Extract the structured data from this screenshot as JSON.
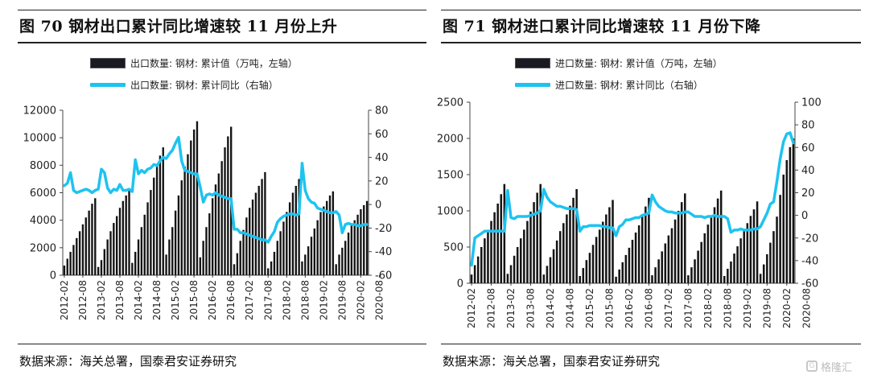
{
  "chart_data": [
    {
      "type": "bar+line",
      "title": "图 70 钢材出口累计同比增速较 11 月份上升",
      "source": "数据来源：海关总署，国泰君安证券研究",
      "legend": [
        {
          "label": "出口数量: 钢材: 累计值（万吨，左轴）",
          "kind": "bar"
        },
        {
          "label": "出口数量: 钢材: 累计同比（右轴）",
          "kind": "line"
        }
      ],
      "legend_position": "top-center",
      "grid": false,
      "y_left": {
        "min": 0,
        "max": 12000,
        "ticks": [
          0,
          2000,
          4000,
          6000,
          8000,
          10000,
          12000
        ]
      },
      "y_right": {
        "min": -60,
        "max": 80,
        "ticks": [
          -60,
          -40,
          -20,
          0,
          20,
          40,
          60,
          80
        ]
      },
      "x_tick_labels": [
        "2012-02",
        "2012-08",
        "2013-02",
        "2013-08",
        "2014-02",
        "2014-08",
        "2015-02",
        "2015-08",
        "2016-02",
        "2016-08",
        "2017-02",
        "2017-08",
        "2018-02",
        "2018-08",
        "2019-02",
        "2019-08",
        "2020-02",
        "2020-08"
      ],
      "x_start": "2012-02",
      "years": [
        {
          "year": 2012,
          "bars": [
            700,
            1200,
            1700,
            2200,
            2700,
            3200,
            3700,
            4200,
            4700,
            5200,
            5600
          ],
          "yoy": [
            16,
            18,
            27,
            12,
            10,
            11,
            12,
            13,
            12,
            10,
            12
          ]
        },
        {
          "year": 2013,
          "bars": [
            600,
            1100,
            1900,
            2600,
            3200,
            3800,
            4300,
            4900,
            5400,
            5800,
            6200
          ],
          "yoy": [
            13,
            30,
            27,
            14,
            10,
            13,
            12,
            17,
            12,
            12,
            13
          ]
        },
        {
          "year": 2014,
          "bars": [
            900,
            1700,
            2600,
            3500,
            4400,
            5300,
            6200,
            7100,
            7900,
            8700,
            9300
          ],
          "yoy": [
            11,
            38,
            26,
            29,
            27,
            30,
            31,
            34,
            33,
            37,
            40
          ]
        },
        {
          "year": 2015,
          "bars": [
            1500,
            2600,
            3500,
            4700,
            5800,
            6900,
            7900,
            8800,
            9800,
            10600,
            11200
          ],
          "yoy": [
            39,
            43,
            46,
            52,
            57,
            37,
            29,
            28,
            27,
            26,
            26
          ]
        },
        {
          "year": 2016,
          "bars": [
            1300,
            2500,
            3500,
            4500,
            5600,
            6600,
            7400,
            8300,
            9300,
            10100,
            10800
          ],
          "yoy": [
            15,
            2,
            8,
            9,
            8,
            10,
            8,
            7,
            6,
            5,
            5
          ]
        },
        {
          "year": 2017,
          "bars": [
            800,
            1600,
            2500,
            3300,
            4200,
            4900,
            5500,
            6000,
            6500,
            7000,
            7500
          ],
          "yoy": [
            -21,
            -21,
            -24,
            -24,
            -25,
            -26,
            -27,
            -28,
            -29,
            -30,
            -30
          ]
        },
        {
          "year": 2018,
          "bars": [
            500,
            1000,
            1700,
            2500,
            3200,
            3900,
            4600,
            5300,
            6000,
            6500,
            7000
          ],
          "yoy": [
            -32,
            -27,
            -23,
            -15,
            -12,
            -10,
            -9,
            -8,
            -8,
            -9,
            -8
          ]
        },
        {
          "year": 2019,
          "bars": [
            1000,
            1500,
            2100,
            2800,
            3400,
            4000,
            4600,
            5000,
            5400,
            5800,
            6100
          ],
          "yoy": [
            35,
            12,
            5,
            2,
            1,
            -3,
            -4,
            -5,
            -6,
            -7,
            -7
          ]
        },
        {
          "year": 2020,
          "bars": [
            800,
            1500,
            2000,
            2500,
            3100,
            3600,
            4000,
            4400,
            4800,
            5100,
            5400
          ],
          "yoy": [
            -6,
            -9,
            -24,
            -17,
            -16,
            -17,
            -17,
            -18,
            -18,
            -17,
            -17
          ]
        }
      ]
    },
    {
      "type": "bar+line",
      "title": "图 71 钢材进口累计同比增速较 11 月份下降",
      "source": "数据来源：海关总署，国泰君安证券研究",
      "legend": [
        {
          "label": "进口数量: 钢材: 累计值（万吨，左轴）",
          "kind": "bar"
        },
        {
          "label": "进口数量: 钢材: 累计同比（右轴）",
          "kind": "line"
        }
      ],
      "legend_position": "top-center",
      "grid": false,
      "y_left": {
        "min": 0,
        "max": 2500,
        "ticks": [
          0,
          500,
          1000,
          1500,
          2000,
          2500
        ]
      },
      "y_right": {
        "min": -60,
        "max": 100,
        "ticks": [
          -60,
          -40,
          -20,
          0,
          20,
          40,
          60,
          80,
          100
        ]
      },
      "x_tick_labels": [
        "2012-02",
        "2012-08",
        "2013-02",
        "2013-08",
        "2014-02",
        "2014-08",
        "2015-02",
        "2015-08",
        "2016-02",
        "2016-08",
        "2017-02",
        "2017-08",
        "2018-02",
        "2018-08",
        "2019-02",
        "2019-08",
        "2020-02",
        "2020-08"
      ],
      "x_start": "2012-02",
      "years": [
        {
          "year": 2012,
          "bars": [
            120,
            250,
            370,
            500,
            620,
            740,
            860,
            980,
            1100,
            1230,
            1370
          ],
          "yoy": [
            -44,
            -20,
            -18,
            -16,
            -14,
            -14,
            -14,
            -14,
            -14,
            -14,
            -14
          ]
        },
        {
          "year": 2013,
          "bars": [
            130,
            250,
            380,
            500,
            620,
            740,
            860,
            990,
            1120,
            1250,
            1370
          ],
          "yoy": [
            22,
            -2,
            -3,
            -1,
            -1,
            -1,
            -1,
            0,
            1,
            2,
            4
          ]
        },
        {
          "year": 2014,
          "bars": [
            120,
            240,
            360,
            470,
            590,
            720,
            830,
            950,
            1070,
            1180,
            1300
          ],
          "yoy": [
            23,
            16,
            12,
            10,
            8,
            8,
            7,
            6,
            6,
            6,
            5
          ]
        },
        {
          "year": 2015,
          "bars": [
            100,
            210,
            320,
            420,
            530,
            640,
            740,
            850,
            950,
            1050,
            1150
          ],
          "yoy": [
            -14,
            -10,
            -10,
            -9,
            -9,
            -9,
            -9,
            -10,
            -10,
            -11,
            -11
          ]
        },
        {
          "year": 2016,
          "bars": [
            90,
            190,
            290,
            390,
            490,
            600,
            700,
            800,
            930,
            1060,
            1180
          ],
          "yoy": [
            -18,
            -10,
            -8,
            -4,
            -4,
            -3,
            -2,
            -2,
            0,
            1,
            2
          ]
        },
        {
          "year": 2017,
          "bars": [
            110,
            220,
            330,
            440,
            550,
            660,
            760,
            880,
            1000,
            1120,
            1240
          ],
          "yoy": [
            18,
            12,
            8,
            6,
            4,
            3,
            3,
            2,
            2,
            2,
            3
          ]
        },
        {
          "year": 2018,
          "bars": [
            110,
            220,
            330,
            450,
            570,
            690,
            810,
            930,
            1050,
            1170,
            1280
          ],
          "yoy": [
            3,
            1,
            -1,
            -1,
            -1,
            -2,
            -1,
            -1,
            0,
            -1,
            -1
          ]
        },
        {
          "year": 2019,
          "bars": [
            100,
            200,
            300,
            410,
            510,
            620,
            720,
            830,
            930,
            1020,
            1130
          ],
          "yoy": [
            -1,
            -3,
            -15,
            -13,
            -13,
            -12,
            -13,
            -13,
            -13,
            -12,
            -12
          ]
        },
        {
          "year": 2020,
          "bars": [
            130,
            260,
            400,
            560,
            720,
            920,
            1220,
            1500,
            1700,
            1880,
            2000
          ],
          "yoy": [
            -10,
            -4,
            2,
            10,
            12,
            30,
            50,
            65,
            72,
            73,
            64
          ]
        }
      ]
    }
  ],
  "watermark": {
    "icon": "gelonghui-logo-icon",
    "text": "格隆汇"
  }
}
